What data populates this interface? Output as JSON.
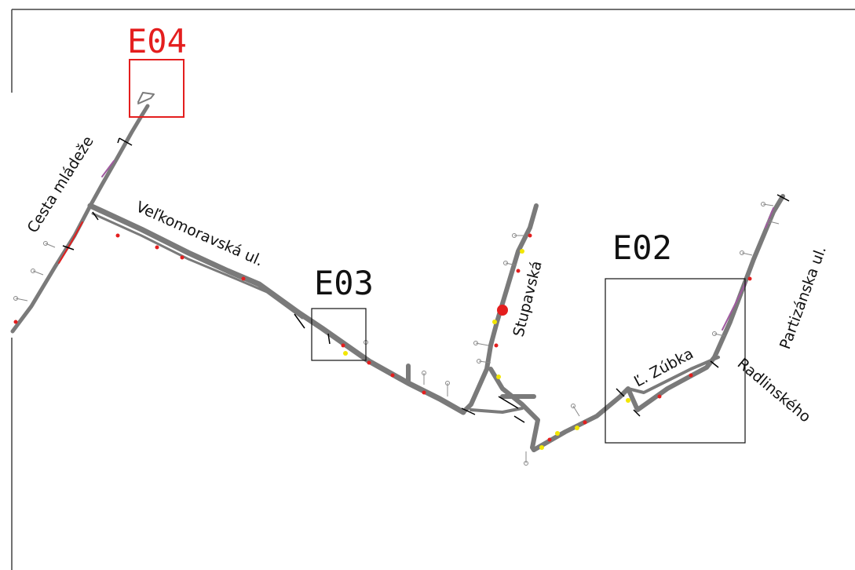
{
  "sheets": [
    {
      "id": "E04",
      "label": "E04",
      "color": "#e41e1e"
    },
    {
      "id": "E03",
      "label": "E03",
      "color": "#111111"
    },
    {
      "id": "E02",
      "label": "E02",
      "color": "#111111"
    }
  ],
  "streets": {
    "cesta_mladeze": "Cesta mládeže",
    "velkomoravska": "Veľkomoravská ul.",
    "stupavska": "Stupavská",
    "zubka": "Ľ. Zúbka",
    "radlinskeho": "Radlinského",
    "partizanska": "Partizánska ul."
  },
  "colors": {
    "network": "#7a7a7a",
    "accent_red": "#e41e1e",
    "accent_yellow": "#f2e600",
    "accent_purple": "#a05aa0",
    "frame": "#444444"
  }
}
